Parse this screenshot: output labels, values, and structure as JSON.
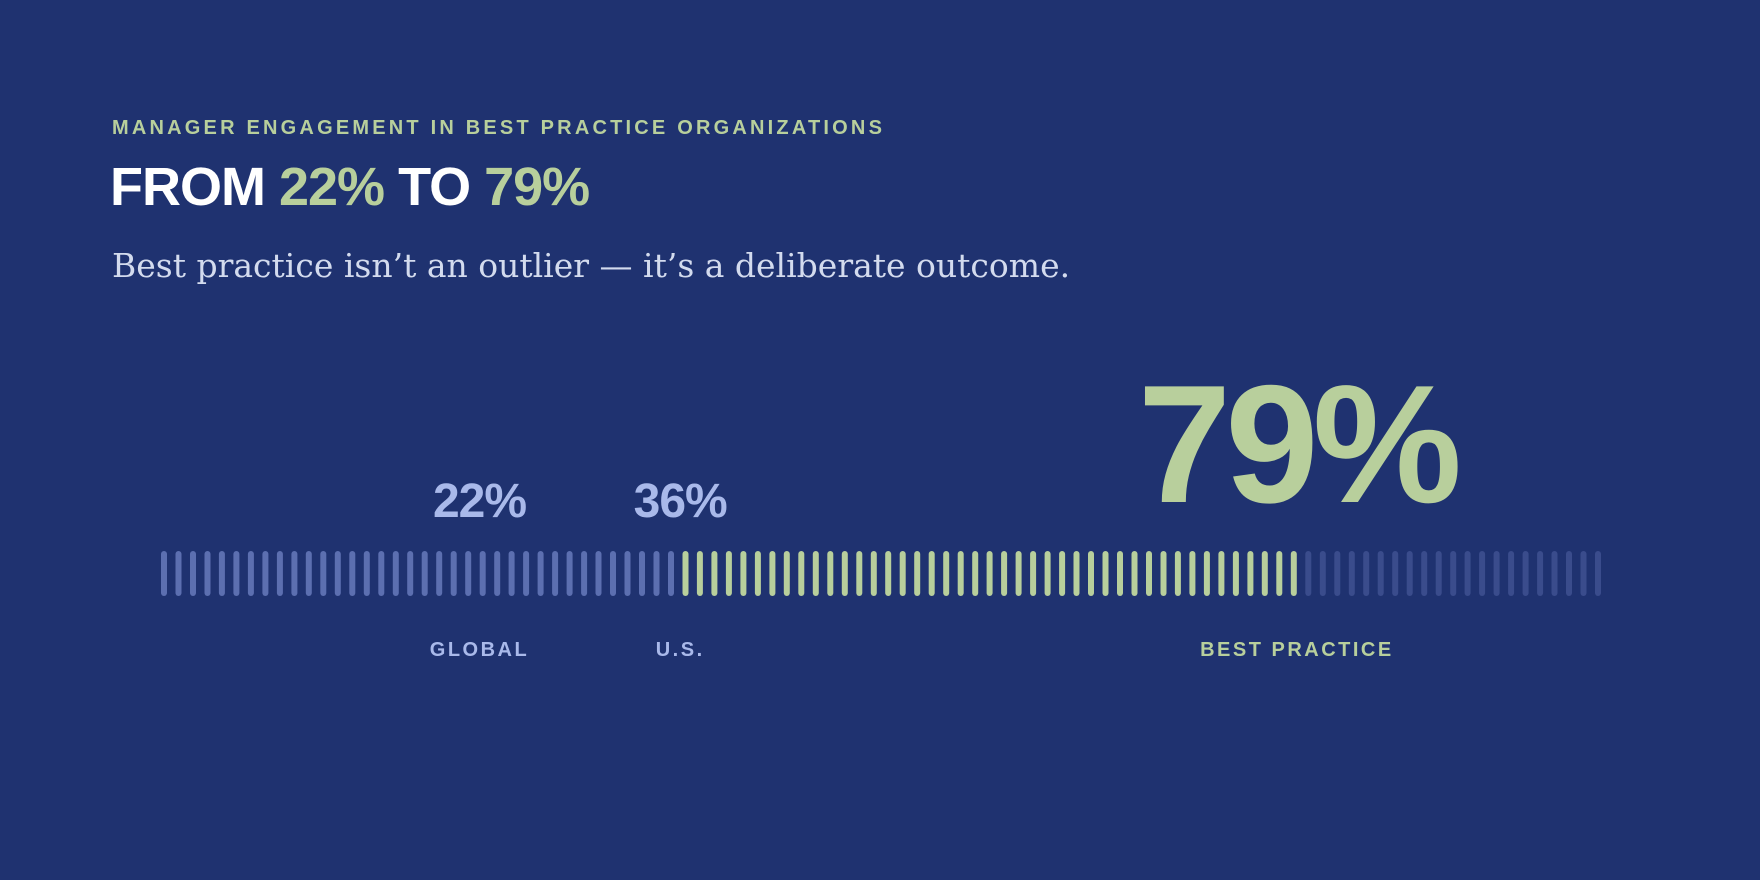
{
  "header": {
    "eyebrow": "MANAGER ENGAGEMENT IN BEST PRACTICE ORGANIZATIONS",
    "headline_prefix": "FROM ",
    "headline_value_1": "22%",
    "headline_mid": " TO ",
    "headline_value_2": "79%",
    "subtitle": "Best practice isn’t an outlier — it’s a deliberate outcome."
  },
  "colors": {
    "background": "#1f3270",
    "accent_green": "#b8cf9c",
    "accent_blue": "#a9b9ea",
    "white": "#ffffff",
    "subtitle": "#d3dbee"
  },
  "chart_data": {
    "type": "bar",
    "subtype": "tick-scale",
    "scale_min": 0,
    "scale_max": 100,
    "tick_count": 100,
    "markers": [
      {
        "label": "GLOBAL",
        "value": 22,
        "value_label": "22%",
        "color": "#a9b9ea"
      },
      {
        "label": "U.S.",
        "value": 36,
        "value_label": "36%",
        "color": "#a9b9ea"
      },
      {
        "label": "BEST PRACTICE",
        "value": 79,
        "value_label": "79%",
        "color": "#b8cf9c"
      }
    ],
    "segments": [
      {
        "from": 0,
        "to": 36,
        "color": "#5c6fb0"
      },
      {
        "from": 36,
        "to": 79,
        "color": "#b8cf9c"
      },
      {
        "from": 79,
        "to": 100,
        "color": "#3a4c8c"
      }
    ]
  }
}
